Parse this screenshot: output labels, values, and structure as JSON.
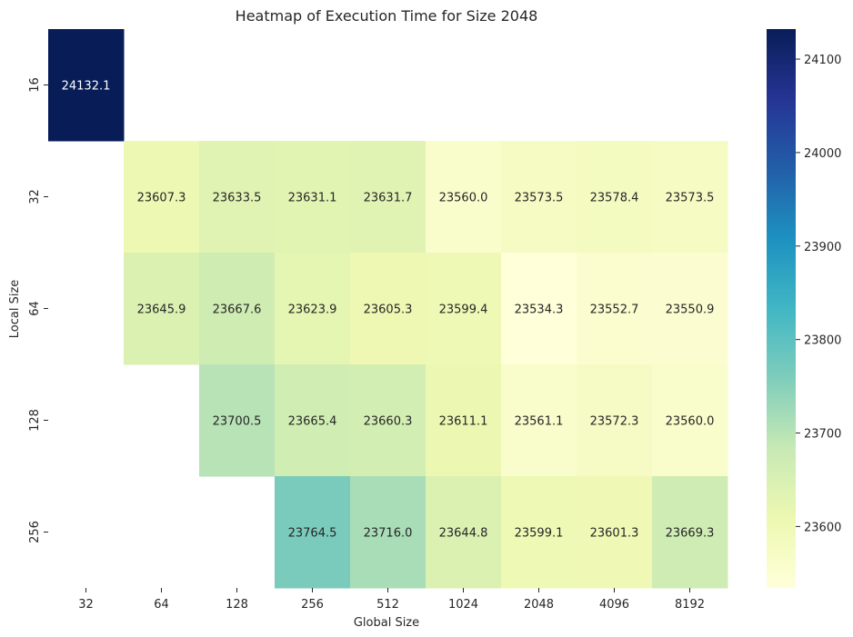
{
  "chart_data": {
    "type": "heatmap",
    "title": "Heatmap of Execution Time for Size 2048",
    "xlabel": "Global Size",
    "ylabel": "Local Size",
    "x_categories": [
      "32",
      "64",
      "128",
      "256",
      "512",
      "1024",
      "2048",
      "4096",
      "8192"
    ],
    "y_categories": [
      "16",
      "32",
      "64",
      "128",
      "256"
    ],
    "values": [
      [
        24132.1,
        null,
        null,
        null,
        null,
        null,
        null,
        null,
        null
      ],
      [
        null,
        23607.3,
        23633.5,
        23631.1,
        23631.7,
        23560.0,
        23573.5,
        23578.4,
        23573.5
      ],
      [
        null,
        23645.9,
        23667.6,
        23623.9,
        23605.3,
        23599.4,
        23534.3,
        23552.7,
        23550.9
      ],
      [
        null,
        null,
        23700.5,
        23665.4,
        23660.3,
        23611.1,
        23561.1,
        23572.3,
        23560.0
      ],
      [
        null,
        null,
        null,
        23764.5,
        23716.0,
        23644.8,
        23599.1,
        23601.3,
        23669.3
      ]
    ],
    "colormap": "YlGnBu",
    "vmin": 23534.3,
    "vmax": 24132.1,
    "colorbar_ticks": [
      "23600",
      "23700",
      "23800",
      "23900",
      "24000",
      "24100"
    ],
    "grid": false,
    "legend": "colorbar-right"
  }
}
